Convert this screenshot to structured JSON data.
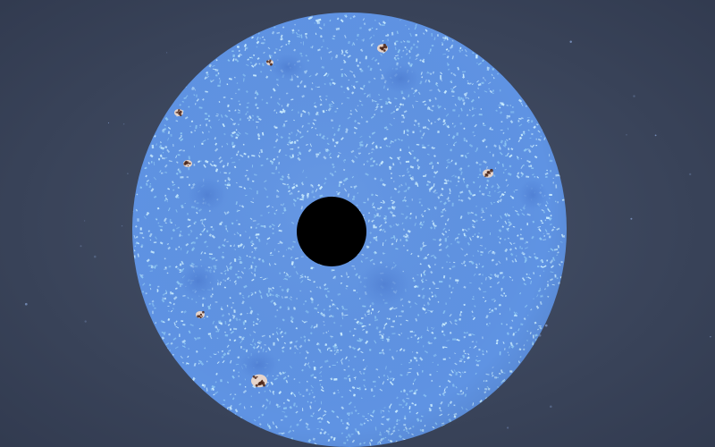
{
  "scene": {
    "colors": {
      "space_background": "#3f4a60",
      "space_vignette": "#2f384c",
      "sphere_base": "#5f93e3",
      "sphere_texture_light": "#c9ecff",
      "sphere_texture_mid": "#8ec7f4",
      "sphere_spot": "#4f7fd4",
      "center_hole": "#000000",
      "lesion_fill": "#e8d6cc",
      "lesion_dark": "#4a2418",
      "star": "#8aa4d6"
    },
    "objects": {
      "sphere": {
        "name": "textured-blue-sphere"
      },
      "center_hole": {
        "name": "black-center-hole"
      },
      "spots": [
        {
          "name": "spot-1"
        },
        {
          "name": "spot-2"
        },
        {
          "name": "spot-3"
        },
        {
          "name": "spot-4"
        },
        {
          "name": "spot-5"
        },
        {
          "name": "spot-6"
        },
        {
          "name": "spot-7"
        }
      ],
      "lesions": [
        {
          "name": "lesion-1"
        },
        {
          "name": "lesion-2"
        },
        {
          "name": "lesion-3"
        },
        {
          "name": "lesion-4"
        },
        {
          "name": "lesion-5"
        },
        {
          "name": "lesion-6"
        },
        {
          "name": "lesion-7"
        }
      ]
    }
  }
}
